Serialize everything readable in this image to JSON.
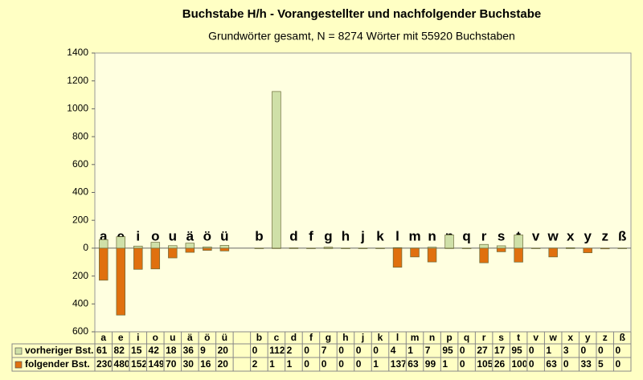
{
  "chart_data": {
    "type": "bar",
    "title": "Buchstabe H/h - Vorangestellter und nachfolgender Buchstabe",
    "subtitle": "Grundwörter gesamt,  N = 8274 Wörter mit 55920 Buchstaben",
    "categories": [
      "a",
      "e",
      "i",
      "o",
      "u",
      "ä",
      "ö",
      "ü",
      null,
      "b",
      "c",
      "d",
      "f",
      "g",
      "h",
      "j",
      "k",
      "l",
      "m",
      "n",
      "p",
      "q",
      "r",
      "s",
      "t",
      "v",
      "w",
      "x",
      "y",
      "z",
      "ß"
    ],
    "series": [
      {
        "name": "vorheriger Bst.",
        "color": "#cfe0a8",
        "values": [
          61,
          82,
          15,
          42,
          18,
          36,
          9,
          20,
          null,
          0,
          1124,
          2,
          0,
          7,
          0,
          0,
          0,
          4,
          1,
          7,
          95,
          0,
          27,
          17,
          95,
          0,
          1,
          3,
          0,
          0,
          0
        ]
      },
      {
        "name": "folgender Bst.",
        "color": "#e0700f",
        "values": [
          230,
          480,
          152,
          149,
          70,
          30,
          16,
          20,
          null,
          2,
          1,
          1,
          0,
          0,
          0,
          0,
          1,
          137,
          63,
          99,
          1,
          0,
          105,
          26,
          100,
          0,
          63,
          0,
          33,
          5,
          0
        ]
      }
    ],
    "ylim": [
      -600,
      1400
    ],
    "yticks": [
      {
        "value": -600,
        "label": "600"
      },
      {
        "value": -400,
        "label": "400"
      },
      {
        "value": -200,
        "label": "200"
      },
      0,
      200,
      400,
      600,
      800,
      1000,
      1200,
      1400
    ]
  }
}
